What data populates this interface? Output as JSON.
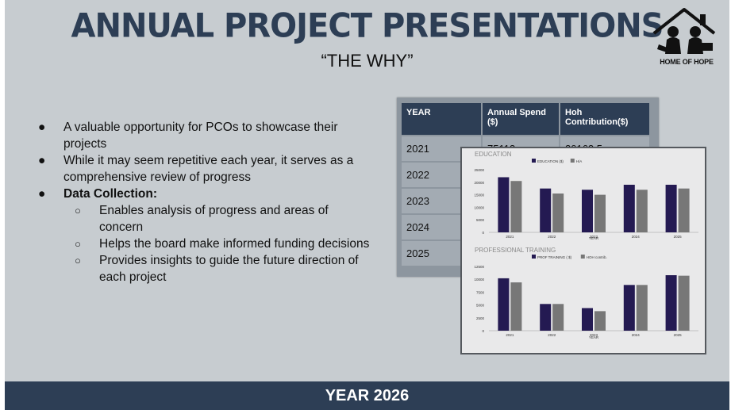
{
  "slide": {
    "title": "ANNUAL PROJECT PRESENTATIONS",
    "subtitle": "“THE WHY”",
    "logo_text": "HOME OF HOPE",
    "footer": "YEAR 2026"
  },
  "bullets": [
    {
      "text": "A valuable opportunity for PCOs to showcase their projects"
    },
    {
      "text": "While it may seem repetitive each year, it serves as a comprehensive review of progress"
    },
    {
      "text": "Data Collection:"
    }
  ],
  "sub_bullets": [
    {
      "text": "Enables analysis of progress and areas of concern"
    },
    {
      "text": "Helps the board make informed funding decisions"
    },
    {
      "text": "Provides insights to guide the future direction of each project"
    }
  ],
  "table": {
    "headers": [
      "YEAR",
      "Annual Spend ($)",
      "Hoh Contribution($)"
    ],
    "rows": [
      [
        "2021",
        "75113",
        "20162.5"
      ],
      [
        "2022",
        "",
        ""
      ],
      [
        "2023",
        "",
        ""
      ],
      [
        "2024",
        "",
        ""
      ],
      [
        "2025",
        "",
        ""
      ]
    ]
  },
  "colors": {
    "title": "#2d3e55",
    "background": "#c7ccd0",
    "series_dark": "#241a52",
    "series_grey": "#777777"
  },
  "chart_data": [
    {
      "type": "bar",
      "title": "EDUCATION",
      "xlabel": "YEAR",
      "categories": [
        "2021",
        "2022",
        "2023",
        "2024",
        "2025"
      ],
      "series": [
        {
          "name": "EDUCATION ($)",
          "values": [
            22000,
            17500,
            17000,
            19000,
            19000
          ]
        },
        {
          "name": "H/A",
          "values": [
            20500,
            15500,
            15000,
            17000,
            17500
          ]
        }
      ],
      "ylim": [
        0,
        25000
      ],
      "yticks": [
        "25000",
        "20000",
        "15000",
        "10000",
        "5000",
        "0"
      ]
    },
    {
      "type": "bar",
      "title": "PROFESSIONAL TRAINING",
      "xlabel": "YEAR",
      "categories": [
        "2021",
        "2022",
        "2023",
        "2024",
        "2025"
      ],
      "series": [
        {
          "name": "PROF TRAINING ( $)",
          "values": [
            10200,
            5200,
            4400,
            8900,
            10800
          ]
        },
        {
          "name": "HOH contrib.",
          "values": [
            9400,
            5200,
            3800,
            8900,
            10700
          ]
        }
      ],
      "ylim": [
        0,
        12500
      ],
      "yticks": [
        "12500",
        "10000",
        "7500",
        "5000",
        "2500",
        "0"
      ]
    }
  ]
}
